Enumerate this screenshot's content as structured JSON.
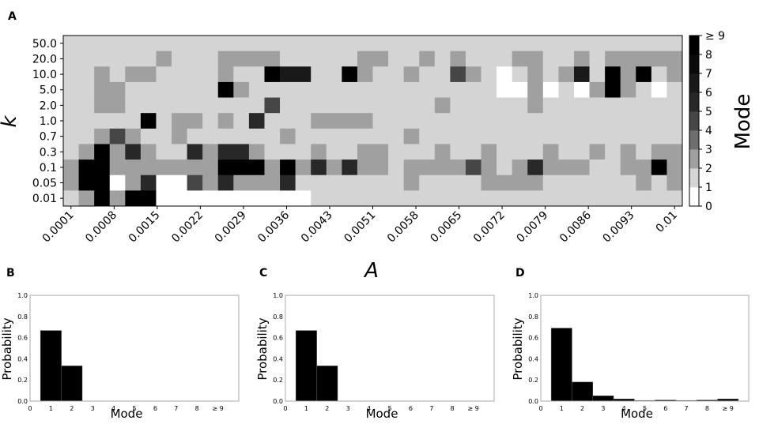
{
  "chart_data": [
    {
      "panel": "A",
      "type": "heatmap",
      "xlabel": "A",
      "ylabel": "k",
      "x_tick_labels": [
        "0.0001",
        "0.0008",
        "0.0015",
        "0.0022",
        "0.0029",
        "0.0036",
        "0.0043",
        "0.0051",
        "0.0058",
        "0.0065",
        "0.0072",
        "0.0079",
        "0.0086",
        "0.0093",
        "0.01"
      ],
      "y_tick_labels": [
        "50.0",
        "20.0",
        "10.0",
        "5.0",
        "2.0",
        "1.0",
        "0.7",
        "0.3",
        "0.1",
        "0.05",
        "0.01"
      ],
      "colorbar": {
        "label": "Mode",
        "ticks": [
          "0",
          "1",
          "2",
          "3",
          "4",
          "5",
          "6",
          "7",
          "8",
          "≥ 9"
        ],
        "min": 0,
        "max": 9
      },
      "grid": false,
      "n_columns": 40,
      "rows": [
        [
          "50.0",
          [
            [
              0,
              40,
              2
            ]
          ]
        ],
        [
          "20.0",
          [
            [
              0,
              6,
              2
            ],
            [
              6,
              7,
              3
            ],
            [
              7,
              10,
              2
            ],
            [
              10,
              14,
              3
            ],
            [
              14,
              19,
              2
            ],
            [
              19,
              21,
              3
            ],
            [
              21,
              23,
              2
            ],
            [
              23,
              24,
              3
            ],
            [
              24,
              25,
              2
            ],
            [
              25,
              26,
              3
            ],
            [
              26,
              29,
              2
            ],
            [
              29,
              31,
              3
            ],
            [
              31,
              33,
              2
            ],
            [
              33,
              34,
              3
            ],
            [
              34,
              35,
              2
            ],
            [
              35,
              40,
              3
            ]
          ]
        ],
        [
          "10.0",
          [
            [
              0,
              2,
              2
            ],
            [
              2,
              3,
              3
            ],
            [
              3,
              4,
              2
            ],
            [
              4,
              6,
              3
            ],
            [
              6,
              10,
              2
            ],
            [
              10,
              11,
              3
            ],
            [
              11,
              13,
              2
            ],
            [
              13,
              14,
              9
            ],
            [
              14,
              16,
              7
            ],
            [
              16,
              18,
              2
            ],
            [
              18,
              19,
              9
            ],
            [
              19,
              20,
              3
            ],
            [
              20,
              22,
              2
            ],
            [
              22,
              23,
              3
            ],
            [
              23,
              25,
              2
            ],
            [
              25,
              26,
              5
            ],
            [
              26,
              27,
              3
            ],
            [
              27,
              28,
              2
            ],
            [
              28,
              29,
              1
            ],
            [
              29,
              30,
              2
            ],
            [
              30,
              31,
              3
            ],
            [
              31,
              32,
              2
            ],
            [
              32,
              33,
              3
            ],
            [
              33,
              34,
              7
            ],
            [
              34,
              35,
              2
            ],
            [
              35,
              36,
              9
            ],
            [
              36,
              37,
              3
            ],
            [
              37,
              38,
              9
            ],
            [
              38,
              39,
              2
            ],
            [
              39,
              40,
              3
            ]
          ]
        ],
        [
          "5.0",
          [
            [
              0,
              2,
              2
            ],
            [
              2,
              4,
              3
            ],
            [
              4,
              10,
              2
            ],
            [
              10,
              11,
              9
            ],
            [
              11,
              12,
              3
            ],
            [
              12,
              28,
              2
            ],
            [
              28,
              30,
              1
            ],
            [
              30,
              31,
              3
            ],
            [
              31,
              32,
              1
            ],
            [
              32,
              33,
              2
            ],
            [
              33,
              34,
              1
            ],
            [
              34,
              35,
              3
            ],
            [
              35,
              36,
              9
            ],
            [
              36,
              37,
              3
            ],
            [
              37,
              38,
              2
            ],
            [
              38,
              39,
              1
            ],
            [
              39,
              40,
              2
            ]
          ]
        ],
        [
          "2.0",
          [
            [
              0,
              2,
              2
            ],
            [
              2,
              4,
              3
            ],
            [
              4,
              13,
              2
            ],
            [
              13,
              14,
              5
            ],
            [
              14,
              24,
              2
            ],
            [
              24,
              25,
              3
            ],
            [
              25,
              30,
              2
            ],
            [
              30,
              31,
              3
            ],
            [
              31,
              40,
              2
            ]
          ]
        ],
        [
          "1.0",
          [
            [
              0,
              5,
              2
            ],
            [
              5,
              6,
              9
            ],
            [
              6,
              7,
              2
            ],
            [
              7,
              9,
              3
            ],
            [
              9,
              10,
              2
            ],
            [
              10,
              11,
              3
            ],
            [
              11,
              12,
              2
            ],
            [
              12,
              13,
              6
            ],
            [
              13,
              16,
              2
            ],
            [
              16,
              20,
              3
            ],
            [
              20,
              40,
              2
            ]
          ]
        ],
        [
          "0.7",
          [
            [
              0,
              2,
              2
            ],
            [
              2,
              3,
              3
            ],
            [
              3,
              4,
              5
            ],
            [
              4,
              5,
              3
            ],
            [
              5,
              7,
              2
            ],
            [
              7,
              8,
              3
            ],
            [
              8,
              14,
              2
            ],
            [
              14,
              15,
              3
            ],
            [
              15,
              22,
              2
            ],
            [
              22,
              23,
              3
            ],
            [
              23,
              40,
              2
            ]
          ]
        ],
        [
          "0.3",
          [
            [
              0,
              1,
              2
            ],
            [
              1,
              2,
              3
            ],
            [
              2,
              3,
              9
            ],
            [
              3,
              4,
              3
            ],
            [
              4,
              5,
              6
            ],
            [
              5,
              6,
              3
            ],
            [
              6,
              8,
              2
            ],
            [
              8,
              9,
              6
            ],
            [
              9,
              10,
              3
            ],
            [
              10,
              12,
              6
            ],
            [
              12,
              13,
              3
            ],
            [
              13,
              16,
              2
            ],
            [
              16,
              17,
              3
            ],
            [
              17,
              19,
              2
            ],
            [
              19,
              21,
              3
            ],
            [
              21,
              24,
              2
            ],
            [
              24,
              25,
              3
            ],
            [
              25,
              27,
              2
            ],
            [
              27,
              28,
              3
            ],
            [
              28,
              31,
              2
            ],
            [
              31,
              32,
              3
            ],
            [
              32,
              34,
              2
            ],
            [
              34,
              35,
              3
            ],
            [
              35,
              36,
              2
            ],
            [
              36,
              37,
              3
            ],
            [
              37,
              38,
              2
            ],
            [
              38,
              40,
              3
            ]
          ]
        ],
        [
          "0.1",
          [
            [
              0,
              1,
              3
            ],
            [
              1,
              3,
              9
            ],
            [
              3,
              10,
              3
            ],
            [
              10,
              13,
              9
            ],
            [
              13,
              14,
              3
            ],
            [
              14,
              15,
              9
            ],
            [
              15,
              16,
              3
            ],
            [
              16,
              17,
              6
            ],
            [
              17,
              18,
              3
            ],
            [
              18,
              19,
              6
            ],
            [
              19,
              21,
              3
            ],
            [
              21,
              22,
              2
            ],
            [
              22,
              26,
              3
            ],
            [
              26,
              27,
              5
            ],
            [
              27,
              28,
              3
            ],
            [
              28,
              29,
              2
            ],
            [
              29,
              30,
              3
            ],
            [
              30,
              31,
              6
            ],
            [
              31,
              34,
              3
            ],
            [
              34,
              35,
              2
            ],
            [
              35,
              36,
              2
            ],
            [
              36,
              38,
              3
            ],
            [
              38,
              39,
              9
            ],
            [
              39,
              40,
              3
            ]
          ]
        ],
        [
          "0.05",
          [
            [
              0,
              1,
              3
            ],
            [
              1,
              3,
              9
            ],
            [
              3,
              4,
              1
            ],
            [
              4,
              5,
              3
            ],
            [
              5,
              6,
              6
            ],
            [
              6,
              8,
              1
            ],
            [
              8,
              9,
              5
            ],
            [
              9,
              10,
              3
            ],
            [
              10,
              11,
              6
            ],
            [
              11,
              14,
              3
            ],
            [
              14,
              15,
              6
            ],
            [
              15,
              22,
              2
            ],
            [
              22,
              23,
              3
            ],
            [
              23,
              27,
              2
            ],
            [
              27,
              31,
              3
            ],
            [
              31,
              37,
              2
            ],
            [
              37,
              38,
              3
            ],
            [
              38,
              39,
              2
            ],
            [
              39,
              40,
              3
            ]
          ]
        ],
        [
          "0.01",
          [
            [
              0,
              1,
              2
            ],
            [
              1,
              2,
              3
            ],
            [
              2,
              3,
              9
            ],
            [
              3,
              4,
              3
            ],
            [
              4,
              6,
              9
            ],
            [
              6,
              16,
              1
            ],
            [
              16,
              40,
              2
            ]
          ]
        ]
      ]
    },
    {
      "panel": "B",
      "type": "bar",
      "xlabel": "Mode",
      "ylabel": "Probability",
      "categories": [
        "1",
        "2",
        "3",
        "4",
        "5",
        "6",
        "7",
        "8",
        "≥9"
      ],
      "values": [
        0.667,
        0.333,
        0,
        0,
        0,
        0,
        0,
        0,
        0
      ],
      "x_tick_labels": [
        "0",
        "1",
        "2",
        "3",
        "4",
        "5",
        "6",
        "7",
        "8",
        "≥ 9"
      ],
      "y_tick_labels": [
        "0.0",
        "0.2",
        "0.4",
        "0.6",
        "0.8",
        "1.0"
      ],
      "ylim": [
        0,
        1
      ]
    },
    {
      "panel": "C",
      "type": "bar",
      "xlabel": "Mode",
      "ylabel": "Probability",
      "categories": [
        "1",
        "2",
        "3",
        "4",
        "5",
        "6",
        "7",
        "8",
        "≥9"
      ],
      "values": [
        0.667,
        0.333,
        0,
        0,
        0,
        0,
        0,
        0,
        0
      ],
      "x_tick_labels": [
        "0",
        "1",
        "2",
        "3",
        "4",
        "5",
        "6",
        "7",
        "8",
        "≥ 9"
      ],
      "y_tick_labels": [
        "0.0",
        "0.2",
        "0.4",
        "0.6",
        "0.8",
        "1.0"
      ],
      "ylim": [
        0,
        1
      ]
    },
    {
      "panel": "D",
      "type": "bar",
      "xlabel": "Mode",
      "ylabel": "Probability",
      "categories": [
        "1",
        "2",
        "3",
        "4",
        "5",
        "6",
        "7",
        "8",
        "≥9"
      ],
      "values": [
        0.69,
        0.18,
        0.05,
        0.02,
        0.003,
        0.01,
        0.003,
        0.01,
        0.02
      ],
      "x_tick_labels": [
        "0",
        "1",
        "2",
        "3",
        "4",
        "5",
        "6",
        "7",
        "8",
        "≥ 9"
      ],
      "y_tick_labels": [
        "0.0",
        "0.2",
        "0.4",
        "0.6",
        "0.8",
        "1.0"
      ],
      "ylim": [
        0,
        1
      ]
    }
  ]
}
